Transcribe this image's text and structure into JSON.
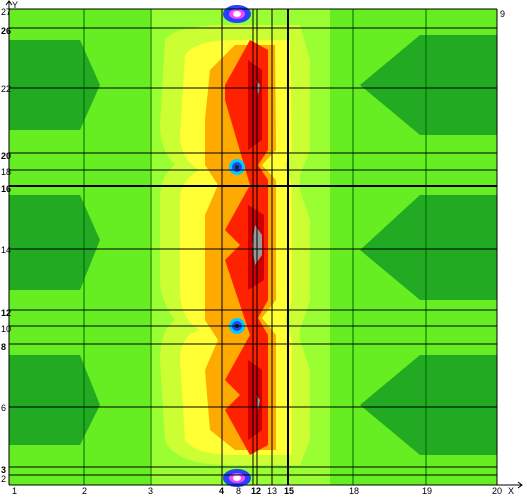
{
  "axis_label_y": "Y",
  "axis_label_x": "X",
  "corner_y_mark": "9",
  "corner_x_mark": "20",
  "x_ticks": [
    {
      "label": "1"
    },
    {
      "label": "2"
    },
    {
      "label": "3"
    },
    {
      "label": "4"
    },
    {
      "label": "8"
    },
    {
      "label": "12"
    },
    {
      "label": "13"
    },
    {
      "label": "15"
    },
    {
      "label": "18"
    },
    {
      "label": "19"
    },
    {
      "label": "20"
    }
  ],
  "y_ticks": [
    {
      "label": "27"
    },
    {
      "label": "26"
    },
    {
      "label": "22"
    },
    {
      "label": "20"
    },
    {
      "label": "18"
    },
    {
      "label": "16"
    },
    {
      "label": "14"
    },
    {
      "label": "12"
    },
    {
      "label": "10"
    },
    {
      "label": "8"
    },
    {
      "label": "6"
    },
    {
      "label": "3"
    },
    {
      "label": "2"
    }
  ],
  "colors": {
    "background_green": "#66ee22",
    "dark_green": "#22aa22",
    "light_green": "#99ff33",
    "yellow_green": "#ccff33",
    "yellow": "#ffff33",
    "orange": "#ffaa00",
    "red": "#ff2200",
    "dark_red": "#cc0000",
    "gray": "#999999",
    "blue": "#2244ff",
    "cyan": "#00ccff",
    "grid": "#000000"
  }
}
